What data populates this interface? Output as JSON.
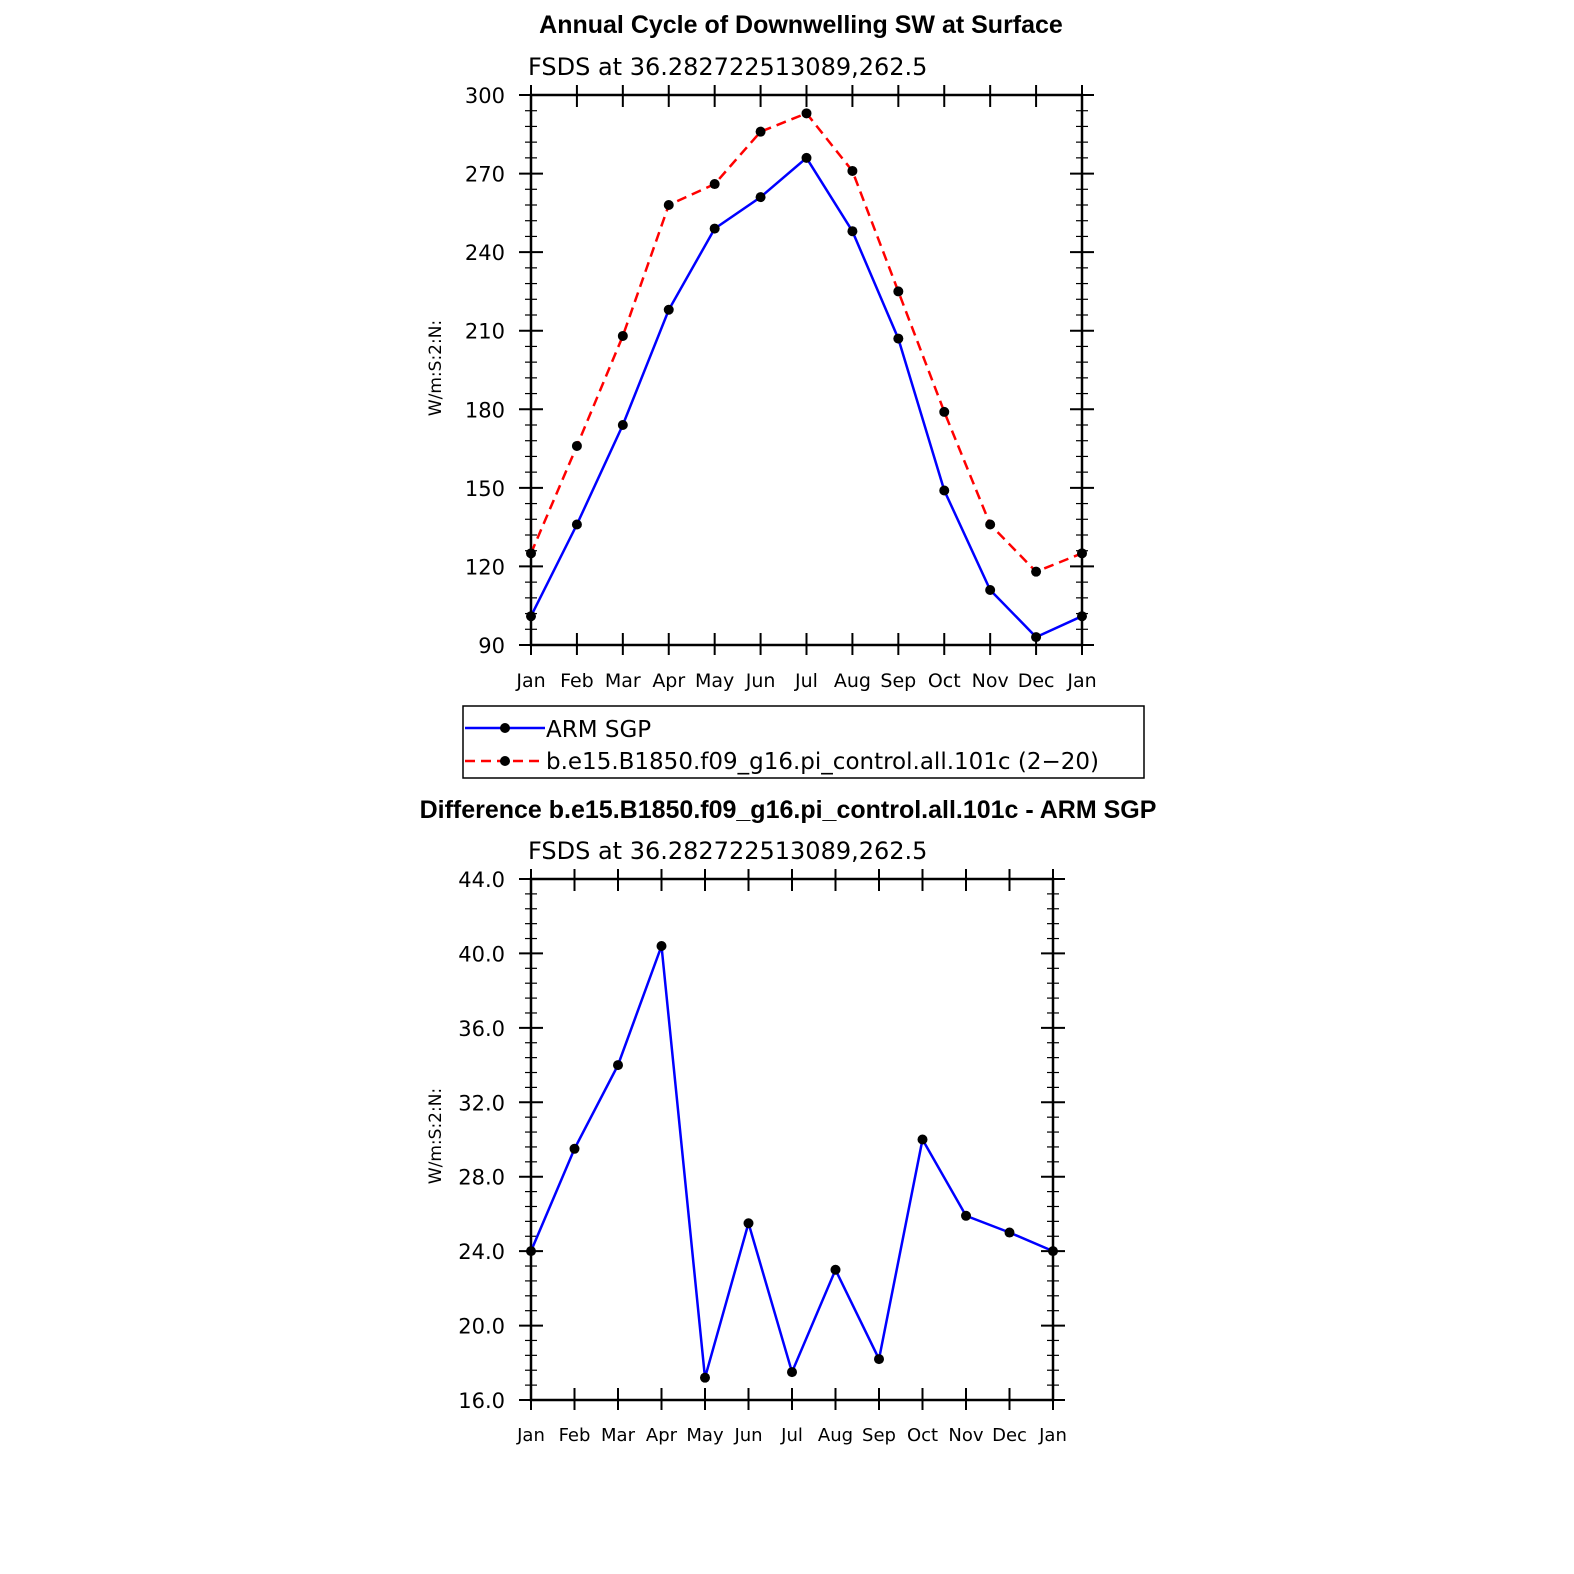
{
  "chart_data": [
    {
      "type": "line",
      "title": "Annual Cycle of Downwelling SW at Surface",
      "subtitle": "FSDS at 36.282722513089,262.5",
      "ylabel": "W/m:S:2:N:",
      "xlabel": "",
      "categories": [
        "Jan",
        "Feb",
        "Mar",
        "Apr",
        "May",
        "Jun",
        "Jul",
        "Aug",
        "Sep",
        "Oct",
        "Nov",
        "Dec",
        "Jan"
      ],
      "ylim": [
        90,
        300
      ],
      "yticks": [
        "90",
        "120",
        "150",
        "180",
        "210",
        "240",
        "270",
        "300"
      ],
      "grid": false,
      "legend_position": "below",
      "series": [
        {
          "name": "ARM SGP",
          "color": "#0000ff",
          "style": "solid",
          "values": [
            101,
            136,
            174,
            218,
            249,
            261,
            276,
            248,
            207,
            149,
            111,
            93,
            101
          ]
        },
        {
          "name": "b.e15.B1850.f09_g16.pi_control.all.101c (2−20)",
          "color": "#ff0000",
          "style": "dashed",
          "values": [
            125,
            166,
            208,
            258,
            266,
            286,
            293,
            271,
            225,
            179,
            136,
            118,
            125
          ]
        }
      ]
    },
    {
      "type": "line",
      "title": "Difference b.e15.B1850.f09_g16.pi_control.all.101c - ARM SGP",
      "subtitle": "FSDS at 36.282722513089,262.5",
      "ylabel": "W/m:S:2:N:",
      "xlabel": "",
      "categories": [
        "Jan",
        "Feb",
        "Mar",
        "Apr",
        "May",
        "Jun",
        "Jul",
        "Aug",
        "Sep",
        "Oct",
        "Nov",
        "Dec",
        "Jan"
      ],
      "ylim": [
        16,
        44
      ],
      "yticks": [
        "16.0",
        "20.0",
        "24.0",
        "28.0",
        "32.0",
        "36.0",
        "40.0",
        "44.0"
      ],
      "grid": false,
      "series": [
        {
          "color": "#0000ff",
          "style": "solid",
          "values": [
            24.0,
            29.5,
            34.0,
            40.4,
            17.2,
            25.5,
            17.5,
            23.0,
            18.2,
            30.0,
            25.9,
            25.0,
            24.0
          ]
        }
      ]
    }
  ]
}
